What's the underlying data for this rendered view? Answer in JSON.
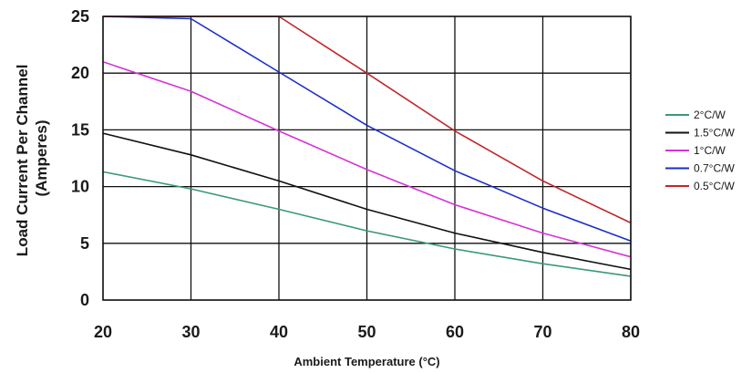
{
  "chart_data": {
    "type": "line",
    "title": "",
    "xlabel": "Ambient Temperature (°C)",
    "ylabel_lines": [
      "Load Current Per Channel",
      "(Amperes)"
    ],
    "xlim": [
      20,
      80
    ],
    "ylim": [
      0,
      25
    ],
    "xticks": [
      20,
      30,
      40,
      50,
      60,
      70,
      80
    ],
    "yticks": [
      0,
      5,
      10,
      15,
      20,
      25
    ],
    "grid": true,
    "legend_position": "right",
    "series": [
      {
        "name": "2°C/W",
        "color": "#3a9a73",
        "x": [
          20,
          30,
          40,
          50,
          60,
          70,
          80
        ],
        "y": [
          11.3,
          9.8,
          8.0,
          6.1,
          4.5,
          3.2,
          2.1
        ]
      },
      {
        "name": "1.5°C/W",
        "color": "#111111",
        "x": [
          20,
          30,
          40,
          50,
          60,
          70,
          80
        ],
        "y": [
          14.7,
          12.8,
          10.5,
          8.0,
          5.9,
          4.2,
          2.7
        ]
      },
      {
        "name": "1°C/W",
        "color": "#d633d6",
        "x": [
          20,
          30,
          40,
          50,
          60,
          70,
          80
        ],
        "y": [
          21.0,
          18.4,
          14.9,
          11.5,
          8.4,
          5.9,
          3.8
        ]
      },
      {
        "name": "0.7°C/W",
        "color": "#1c2fc8",
        "x": [
          20,
          30,
          40,
          50,
          60,
          70,
          80
        ],
        "y": [
          25.0,
          24.8,
          20.1,
          15.4,
          11.4,
          8.1,
          5.2
        ]
      },
      {
        "name": "0.5°C/W",
        "color": "#c0282a",
        "x": [
          20,
          30,
          40,
          50,
          60,
          70,
          80
        ],
        "y": [
          25.0,
          25.0,
          25.0,
          20.0,
          14.9,
          10.5,
          6.8
        ]
      }
    ]
  }
}
